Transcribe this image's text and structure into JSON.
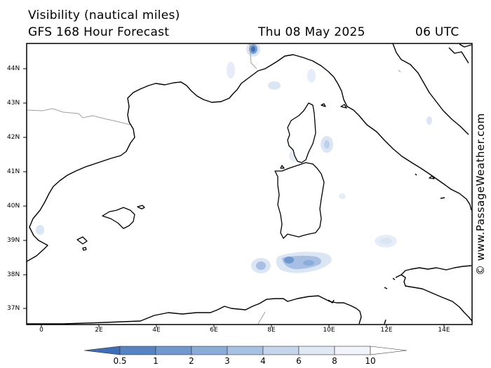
{
  "header": {
    "variable": "Visibility (nautical miles)",
    "model": "GFS 168 Hour Forecast",
    "date": "Thu 08 May 2025",
    "time": "06 UTC"
  },
  "map": {
    "lat_labels": [
      "44N",
      "43N",
      "42N",
      "41N",
      "40N",
      "39N",
      "38N",
      "37N"
    ],
    "lon_labels": [
      "0",
      "2E",
      "4E",
      "6E",
      "8E",
      "10E",
      "12E",
      "14E"
    ],
    "region": "Western Mediterranean",
    "colors": {
      "coast": "#000000",
      "border": "#a0a0a0",
      "fill_dark": "#3d6fb8",
      "fill_mid": "#a7bfe2",
      "fill_light": "#dbe6f5"
    }
  },
  "legend": {
    "labels": [
      "0.5",
      "1",
      "2",
      "3",
      "4",
      "6",
      "8",
      "10"
    ],
    "colors": [
      "#3d6fb8",
      "#5484c4",
      "#6e98cf",
      "#8aacd9",
      "#a7c1e3",
      "#c4d5ec",
      "#dfe8f5",
      "#f1f5fb",
      "#ffffff"
    ]
  },
  "credit": "© www.PassageWeather.com"
}
